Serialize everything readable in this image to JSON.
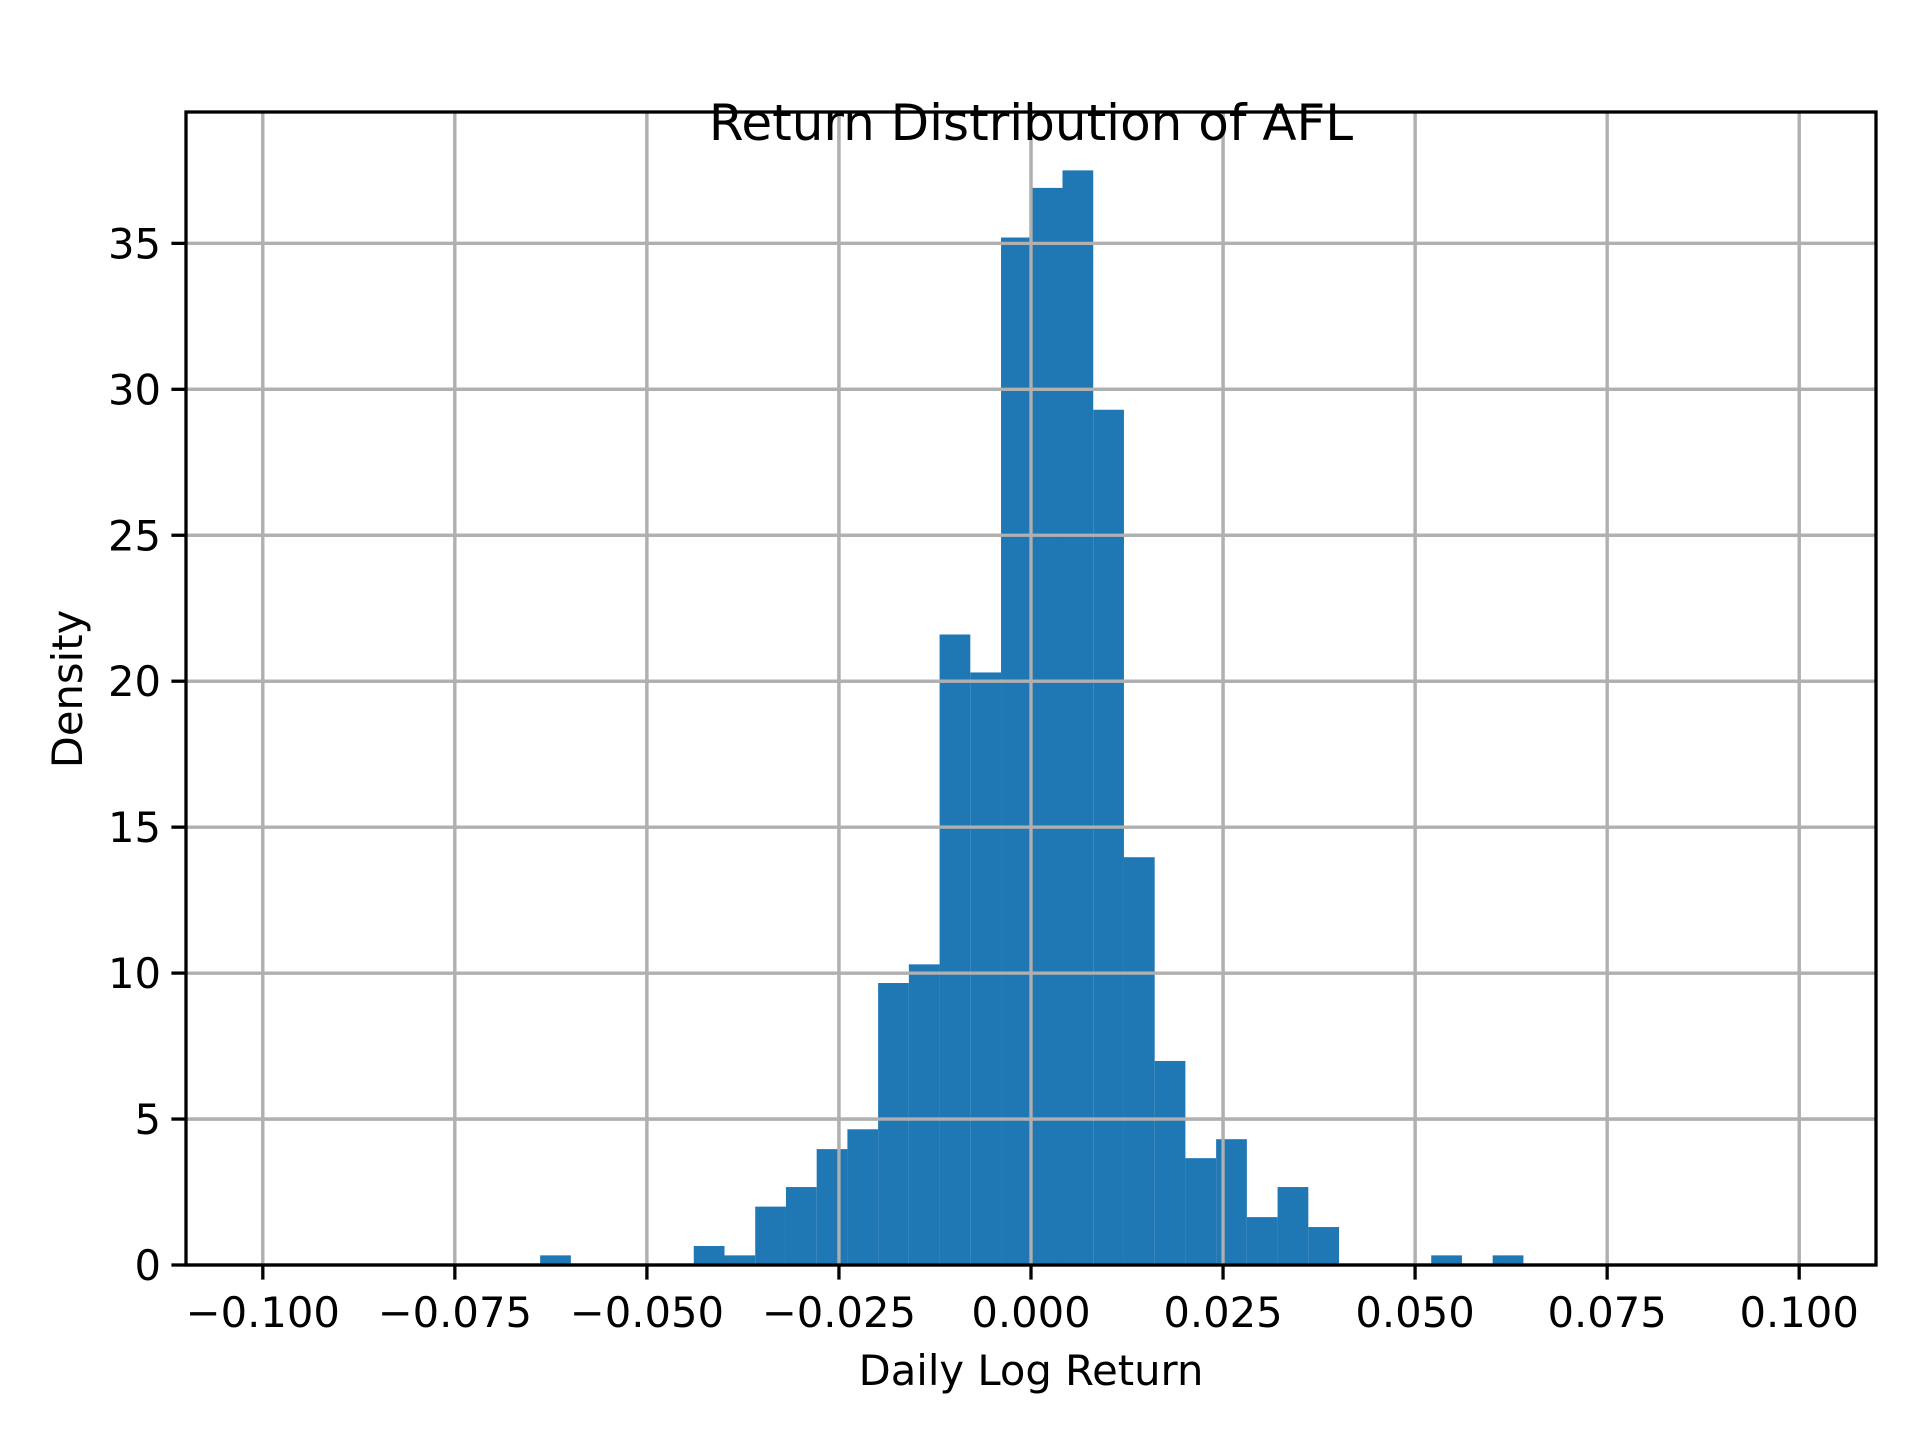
{
  "chart_data": {
    "type": "bar",
    "subtype": "histogram",
    "title": "Return Distribution of AFL",
    "xlabel": "Daily Log Return",
    "ylabel": "Density",
    "xlim": [
      -0.11,
      0.11
    ],
    "ylim": [
      0,
      39.5
    ],
    "grid": true,
    "legend": null,
    "bar_color": "#1f77b4",
    "x_ticks": [
      -0.1,
      -0.075,
      -0.05,
      -0.025,
      0.0,
      0.025,
      0.05,
      0.075,
      0.1
    ],
    "x_tick_labels": [
      "−0.100",
      "−0.075",
      "−0.050",
      "−0.025",
      "0.000",
      "0.025",
      "0.050",
      "0.075",
      "0.100"
    ],
    "y_ticks": [
      0,
      5,
      10,
      15,
      20,
      25,
      30,
      35
    ],
    "y_tick_labels": [
      "0",
      "5",
      "10",
      "15",
      "20",
      "25",
      "30",
      "35"
    ],
    "bin_start": -0.0639,
    "bin_width": 0.004,
    "bin_edges": [
      -0.0639,
      -0.0599,
      -0.0559,
      -0.0519,
      -0.0479,
      -0.0439,
      -0.0399,
      -0.0359,
      -0.0319,
      -0.0279,
      -0.0239,
      -0.0199,
      -0.0159,
      -0.0119,
      -0.0079,
      -0.0039,
      0.0001,
      0.0041,
      0.0081,
      0.0121,
      0.0161,
      0.0201,
      0.0241,
      0.0281,
      0.0321,
      0.0361,
      0.0401,
      0.0441,
      0.0481,
      0.0521,
      0.0561,
      0.0601,
      0.0641
    ],
    "values": [
      0.33,
      0,
      0,
      0,
      0,
      0.65,
      0.33,
      2.0,
      2.67,
      3.97,
      4.65,
      9.66,
      10.3,
      21.6,
      20.3,
      35.2,
      36.9,
      37.5,
      29.3,
      13.97,
      6.99,
      3.66,
      4.31,
      1.64,
      2.67,
      1.3,
      0,
      0,
      0,
      0.33,
      0,
      0.33
    ]
  }
}
